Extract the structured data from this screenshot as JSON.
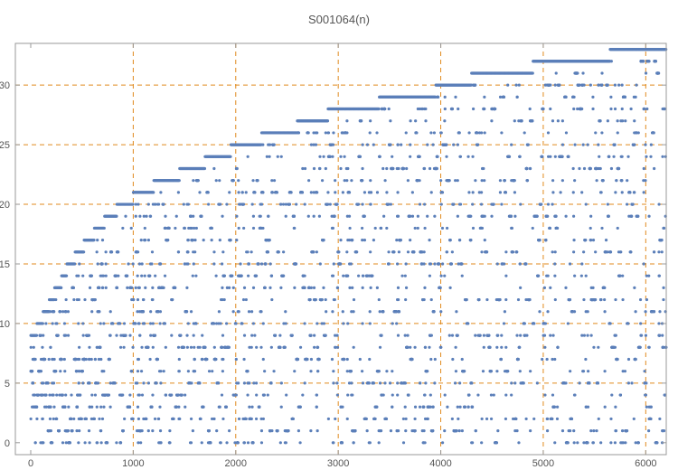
{
  "chart_data": {
    "type": "scatter",
    "title": "S001064(n)",
    "xlabel": "",
    "ylabel": "",
    "xlim": [
      -150,
      6200
    ],
    "ylim": [
      -1,
      33.5
    ],
    "x_ticks": [
      0,
      1000,
      2000,
      3000,
      4000,
      5000,
      6000
    ],
    "y_ticks": [
      0,
      5,
      10,
      15,
      20,
      25,
      30
    ],
    "grid_x": [
      1000,
      2000,
      3000,
      4000,
      5000,
      6000
    ],
    "grid_y": [
      5,
      10,
      15,
      20,
      25,
      30
    ],
    "n_range": [
      1,
      6200
    ],
    "series": [
      {
        "marker_color": "#5b7fb9",
        "top_envelope": [
          {
            "x": 60,
            "y": 10
          },
          {
            "x": 120,
            "y": 11
          },
          {
            "x": 180,
            "y": 12
          },
          {
            "x": 230,
            "y": 13
          },
          {
            "x": 300,
            "y": 14
          },
          {
            "x": 350,
            "y": 15
          },
          {
            "x": 430,
            "y": 16
          },
          {
            "x": 520,
            "y": 17
          },
          {
            "x": 620,
            "y": 18
          },
          {
            "x": 720,
            "y": 19
          },
          {
            "x": 840,
            "y": 20
          },
          {
            "x": 1000,
            "y": 21
          },
          {
            "x": 1200,
            "y": 22
          },
          {
            "x": 1450,
            "y": 23
          },
          {
            "x": 1700,
            "y": 24
          },
          {
            "x": 1950,
            "y": 25
          },
          {
            "x": 2250,
            "y": 26
          },
          {
            "x": 2600,
            "y": 27
          },
          {
            "x": 2900,
            "y": 28
          },
          {
            "x": 3400,
            "y": 29
          },
          {
            "x": 3950,
            "y": 30
          },
          {
            "x": 4300,
            "y": 31
          },
          {
            "x": 4900,
            "y": 32
          },
          {
            "x": 5650,
            "y": 33
          },
          {
            "x": 6150,
            "y": 33
          }
        ]
      }
    ],
    "grid_color": "#e08a1e",
    "axis_color": "#999999"
  }
}
